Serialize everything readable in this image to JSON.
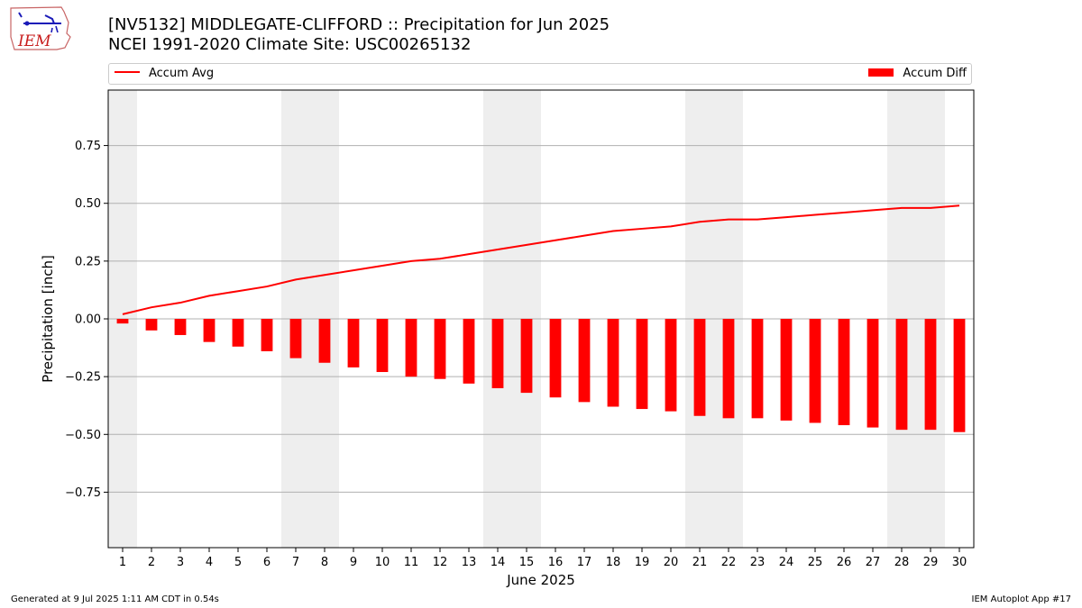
{
  "header": {
    "title": "[NV5132] MIDDLEGATE-CLIFFORD :: Precipitation for Jun 2025",
    "subtitle": "NCEI 1991-2020 Climate Site: USC00265132",
    "logo_text": "IEM"
  },
  "legend": {
    "line_label": "Accum Avg",
    "bar_label": "Accum Diff"
  },
  "footer": {
    "left": "Generated at 9 Jul 2025 1:11 AM CDT in 0.54s",
    "right": "IEM Autoplot App #17"
  },
  "colors": {
    "series": "#ff0000",
    "weekend_band": "#eeeeee",
    "grid": "#b0b0b0"
  },
  "chart_data": {
    "type": "bar",
    "xlabel": "June 2025",
    "ylabel": "Precipitation [inch]",
    "ylim": [
      -0.99,
      0.99
    ],
    "yticks": [
      -0.75,
      -0.5,
      -0.25,
      0.0,
      0.25,
      0.5,
      0.75
    ],
    "ytick_labels": [
      "−0.75",
      "−0.50",
      "−0.25",
      "0.00",
      "0.25",
      "0.50",
      "0.75"
    ],
    "grid": "horizontal",
    "legend_position": "top",
    "categories": [
      "1",
      "2",
      "3",
      "4",
      "5",
      "6",
      "7",
      "8",
      "9",
      "10",
      "11",
      "12",
      "13",
      "14",
      "15",
      "16",
      "17",
      "18",
      "19",
      "20",
      "21",
      "22",
      "23",
      "24",
      "25",
      "26",
      "27",
      "28",
      "29",
      "30"
    ],
    "shaded_days": [
      1,
      7,
      8,
      14,
      15,
      21,
      22,
      28,
      29
    ],
    "series": [
      {
        "name": "Accum Avg",
        "type": "line",
        "values": [
          0.02,
          0.05,
          0.07,
          0.1,
          0.12,
          0.14,
          0.17,
          0.19,
          0.21,
          0.23,
          0.25,
          0.26,
          0.28,
          0.3,
          0.32,
          0.34,
          0.36,
          0.38,
          0.39,
          0.4,
          0.42,
          0.43,
          0.43,
          0.44,
          0.45,
          0.46,
          0.47,
          0.48,
          0.48,
          0.49
        ]
      },
      {
        "name": "Accum Diff",
        "type": "bar",
        "values": [
          -0.02,
          -0.05,
          -0.07,
          -0.1,
          -0.12,
          -0.14,
          -0.17,
          -0.19,
          -0.21,
          -0.23,
          -0.25,
          -0.26,
          -0.28,
          -0.3,
          -0.32,
          -0.34,
          -0.36,
          -0.38,
          -0.39,
          -0.4,
          -0.42,
          -0.43,
          -0.43,
          -0.44,
          -0.45,
          -0.46,
          -0.47,
          -0.48,
          -0.48,
          -0.49
        ]
      }
    ]
  }
}
